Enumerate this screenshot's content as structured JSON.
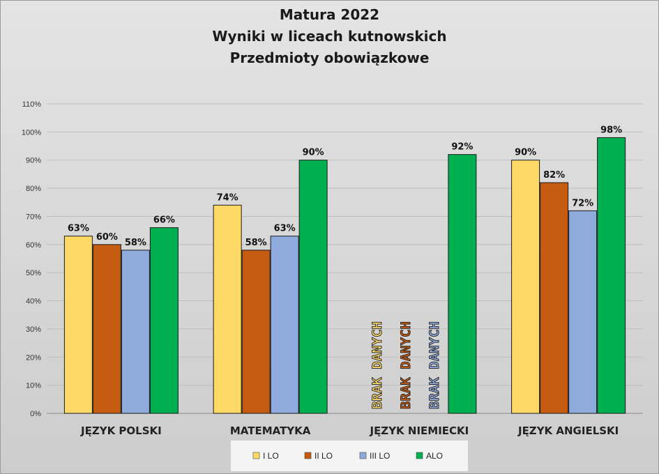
{
  "chart_data": {
    "type": "bar",
    "title_lines": [
      "Matura 2022",
      "Wyniki w liceach kutnowskich",
      "Przedmioty obowiązkowe"
    ],
    "categories": [
      "JĘZYK POLSKI",
      "MATEMATYKA",
      "JĘZYK NIEMIECKI",
      "JĘZYK ANGIELSKI"
    ],
    "series": [
      {
        "name": "I LO",
        "color": "#FFD966",
        "values": [
          63,
          74,
          null,
          90
        ],
        "value_labels": [
          "63%",
          "74%",
          "",
          "90%"
        ]
      },
      {
        "name": "II LO",
        "color": "#C55A11",
        "values": [
          60,
          58,
          null,
          82
        ],
        "value_labels": [
          "60%",
          "58%",
          "",
          "82%"
        ]
      },
      {
        "name": "III LO",
        "color": "#8FAADC",
        "values": [
          58,
          63,
          null,
          72
        ],
        "value_labels": [
          "58%",
          "63%",
          "",
          "72%"
        ]
      },
      {
        "name": "ALO",
        "color": "#00B050",
        "values": [
          66,
          90,
          92,
          98
        ],
        "value_labels": [
          "66%",
          "90%",
          "92%",
          "98%"
        ]
      }
    ],
    "missing_label": "BRAK DANYCH",
    "ylim": [
      0,
      110
    ],
    "yticks": [
      0,
      10,
      20,
      30,
      40,
      50,
      60,
      70,
      80,
      90,
      100,
      110
    ],
    "ytick_labels": [
      "0%",
      "10%",
      "20%",
      "30%",
      "40%",
      "50%",
      "60%",
      "70%",
      "80%",
      "90%",
      "100%",
      "110%"
    ],
    "grid": true,
    "legend": "bottom"
  }
}
